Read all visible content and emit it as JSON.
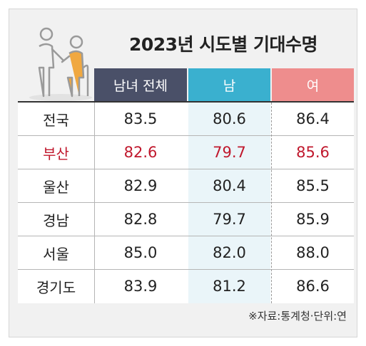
{
  "chart_data": {
    "type": "table",
    "title": "2023년 시도별 기대수명",
    "columns": [
      "남녀 전체",
      "남",
      "여"
    ],
    "rows": [
      {
        "region": "전국",
        "total": "83.5",
        "male": "80.6",
        "female": "86.4",
        "highlight": false
      },
      {
        "region": "부산",
        "total": "82.6",
        "male": "79.7",
        "female": "85.6",
        "highlight": true
      },
      {
        "region": "울산",
        "total": "82.9",
        "male": "80.4",
        "female": "85.5",
        "highlight": false
      },
      {
        "region": "경남",
        "total": "82.8",
        "male": "79.7",
        "female": "85.9",
        "highlight": false
      },
      {
        "region": "서울",
        "total": "85.0",
        "male": "82.0",
        "female": "88.0",
        "highlight": false
      },
      {
        "region": "경기도",
        "total": "83.9",
        "male": "81.2",
        "female": "86.6",
        "highlight": false
      }
    ],
    "note": "※자료:통계청·단위:연"
  },
  "colors": {
    "header_total": "#4a5068",
    "header_male": "#3ab0cf",
    "header_female": "#ee8d8d",
    "highlight_text": "#c0182d",
    "body_text": "#222222"
  },
  "icons": [
    "elderly-couple-illustration-icon"
  ]
}
